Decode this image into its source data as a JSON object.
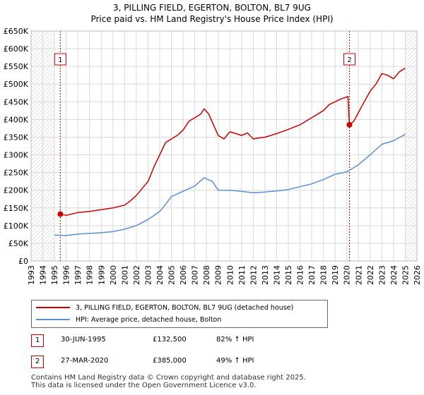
{
  "header": {
    "title": "3, PILLING FIELD, EGERTON, BOLTON, BL7 9UG",
    "subtitle": "Price paid vs. HM Land Registry's House Price Index (HPI)"
  },
  "chart_data": {
    "type": "line",
    "title": "3, PILLING FIELD, EGERTON, BOLTON, BL7 9UG",
    "subtitle": "Price paid vs. HM Land Registry's House Price Index (HPI)",
    "xlim": [
      1993,
      2026
    ],
    "ylim": [
      0,
      650000
    ],
    "x_ticks": [
      "1993",
      "1994",
      "1995",
      "1996",
      "1997",
      "1998",
      "1999",
      "2000",
      "2001",
      "2002",
      "2003",
      "2004",
      "2005",
      "2006",
      "2007",
      "2008",
      "2009",
      "2010",
      "2011",
      "2012",
      "2013",
      "2014",
      "2015",
      "2016",
      "2017",
      "2018",
      "2019",
      "2020",
      "2021",
      "2022",
      "2023",
      "2024",
      "2025",
      "2026"
    ],
    "y_ticks": [
      {
        "value": 0,
        "label": "£0"
      },
      {
        "value": 50000,
        "label": "£50K"
      },
      {
        "value": 100000,
        "label": "£100K"
      },
      {
        "value": 150000,
        "label": "£150K"
      },
      {
        "value": 200000,
        "label": "£200K"
      },
      {
        "value": 250000,
        "label": "£250K"
      },
      {
        "value": 300000,
        "label": "£300K"
      },
      {
        "value": 350000,
        "label": "£350K"
      },
      {
        "value": 400000,
        "label": "£400K"
      },
      {
        "value": 450000,
        "label": "£450K"
      },
      {
        "value": 500000,
        "label": "£500K"
      },
      {
        "value": 550000,
        "label": "£550K"
      },
      {
        "value": 600000,
        "label": "£600K"
      },
      {
        "value": 650000,
        "label": "£650K"
      }
    ],
    "shaded_ranges": [
      [
        1993,
        1995.0
      ],
      [
        2025.0,
        2026
      ]
    ],
    "series": [
      {
        "name": "3, PILLING FIELD, EGERTON, BOLTON, BL7 9UG (detached house)",
        "color": "#cc0000",
        "points": [
          [
            1995.5,
            132500
          ],
          [
            1996,
            129000
          ],
          [
            1997,
            137000
          ],
          [
            1998,
            140000
          ],
          [
            1999,
            145000
          ],
          [
            2000,
            150000
          ],
          [
            2001,
            158000
          ],
          [
            2001.5,
            170000
          ],
          [
            2002,
            185000
          ],
          [
            2002.5,
            205000
          ],
          [
            2003,
            225000
          ],
          [
            2003.5,
            265000
          ],
          [
            2004,
            300000
          ],
          [
            2004.5,
            335000
          ],
          [
            2005,
            345000
          ],
          [
            2005.5,
            355000
          ],
          [
            2006,
            370000
          ],
          [
            2006.5,
            395000
          ],
          [
            2007,
            405000
          ],
          [
            2007.5,
            415000
          ],
          [
            2007.8,
            430000
          ],
          [
            2008.2,
            415000
          ],
          [
            2008.6,
            385000
          ],
          [
            2009,
            355000
          ],
          [
            2009.5,
            345000
          ],
          [
            2010,
            365000
          ],
          [
            2010.5,
            360000
          ],
          [
            2011,
            355000
          ],
          [
            2011.5,
            362000
          ],
          [
            2012,
            345000
          ],
          [
            2012.5,
            348000
          ],
          [
            2013,
            350000
          ],
          [
            2014,
            360000
          ],
          [
            2015,
            372000
          ],
          [
            2016,
            385000
          ],
          [
            2017,
            405000
          ],
          [
            2018,
            425000
          ],
          [
            2018.5,
            442000
          ],
          [
            2019,
            450000
          ],
          [
            2019.5,
            458000
          ],
          [
            2020.1,
            465000
          ],
          [
            2020.23,
            385000
          ],
          [
            2020.6,
            395000
          ],
          [
            2021,
            420000
          ],
          [
            2021.5,
            450000
          ],
          [
            2022,
            480000
          ],
          [
            2022.5,
            500000
          ],
          [
            2023,
            530000
          ],
          [
            2023.5,
            525000
          ],
          [
            2024,
            515000
          ],
          [
            2024.5,
            535000
          ],
          [
            2025,
            545000
          ]
        ]
      },
      {
        "name": "HPI: Average price, detached house, Bolton",
        "color": "#5b8fd1",
        "points": [
          [
            1995,
            73000
          ],
          [
            1996,
            72000
          ],
          [
            1997,
            76000
          ],
          [
            1998,
            78000
          ],
          [
            1999,
            80000
          ],
          [
            2000,
            83000
          ],
          [
            2001,
            90000
          ],
          [
            2002,
            100000
          ],
          [
            2003,
            117000
          ],
          [
            2004,
            140000
          ],
          [
            2004.5,
            160000
          ],
          [
            2005,
            182000
          ],
          [
            2006,
            197000
          ],
          [
            2007,
            212000
          ],
          [
            2007.8,
            235000
          ],
          [
            2008.5,
            225000
          ],
          [
            2009,
            200000
          ],
          [
            2010,
            200000
          ],
          [
            2011,
            197000
          ],
          [
            2012,
            193000
          ],
          [
            2013,
            195000
          ],
          [
            2014,
            198000
          ],
          [
            2015,
            202000
          ],
          [
            2016,
            210000
          ],
          [
            2017,
            218000
          ],
          [
            2018,
            230000
          ],
          [
            2019,
            245000
          ],
          [
            2020,
            252000
          ],
          [
            2021,
            272000
          ],
          [
            2022,
            300000
          ],
          [
            2023,
            330000
          ],
          [
            2024,
            340000
          ],
          [
            2025,
            358000
          ]
        ]
      }
    ],
    "annotations": [
      {
        "label": "1",
        "x": 1995.5,
        "y": 132500
      },
      {
        "label": "2",
        "x": 2020.23,
        "y": 385000
      }
    ]
  },
  "legend": {
    "items": [
      {
        "label": "3, PILLING FIELD, EGERTON, BOLTON, BL7 9UG (detached house)",
        "color": "#cc0000"
      },
      {
        "label": "HPI: Average price, detached house, Bolton",
        "color": "#5b8fd1"
      }
    ]
  },
  "transactions": [
    {
      "id": "1",
      "date": "30-JUN-1995",
      "price": "£132,500",
      "hpi": "82% ↑ HPI"
    },
    {
      "id": "2",
      "date": "27-MAR-2020",
      "price": "£385,000",
      "hpi": "49% ↑ HPI"
    }
  ],
  "footer": {
    "line1": "Contains HM Land Registry data © Crown copyright and database right 2025.",
    "line2": "This data is licensed under the Open Government Licence v3.0."
  }
}
